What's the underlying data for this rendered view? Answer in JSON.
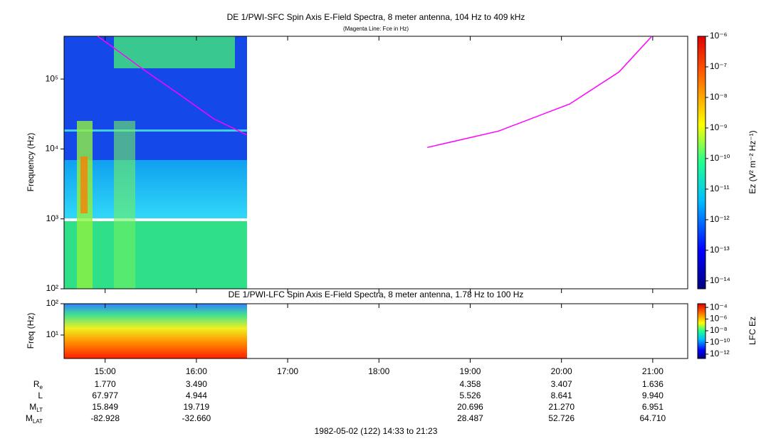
{
  "chart_data": [
    {
      "type": "spectrogram",
      "title": "DE 1/PWI-SFC  Spin Axis E-Field Spectra, 8 meter antenna, 104 Hz to 409 kHz",
      "subtitle": "(Magenta Line: Fce in Hz)",
      "ylabel": "Frequency (Hz)",
      "log_y": true,
      "ylim": [
        100,
        409000
      ],
      "yticks": [
        {
          "value": 100,
          "label": "10²"
        },
        {
          "value": 1000,
          "label": "10³"
        },
        {
          "value": 10000,
          "label": "10⁴"
        },
        {
          "value": 100000,
          "label": "10⁵"
        }
      ],
      "xlim": [
        14.55,
        21.3833
      ],
      "series": [
        {
          "color": "#ff00ff",
          "x": [
            14.92,
            15.41,
            15.8,
            16.19,
            16.55,
            null,
            18.53,
            19.31,
            20.09,
            20.63,
            20.99
          ],
          "values": [
            409000,
            140000,
            62000,
            27000,
            16000,
            null,
            10500,
            18000,
            44000,
            126000,
            409000
          ]
        }
      ],
      "colorbar": {
        "label": "Ez (V² m⁻² Hz⁻¹)",
        "lim": [
          5.5e-15,
          1e-06
        ],
        "ticks": [
          {
            "value": 1e-06,
            "label": "10⁻⁶"
          },
          {
            "value": 1e-07,
            "label": "10⁻⁷"
          },
          {
            "value": 1e-08,
            "label": "10⁻⁸"
          },
          {
            "value": 1e-09,
            "label": "10⁻⁹"
          },
          {
            "value": 1e-10,
            "label": "10⁻¹⁰"
          },
          {
            "value": 1e-11,
            "label": "10⁻¹¹"
          },
          {
            "value": 1e-12,
            "label": "10⁻¹²"
          },
          {
            "value": 1e-13,
            "label": "10⁻¹³"
          },
          {
            "value": 1e-14,
            "label": "10⁻¹⁴"
          }
        ]
      }
    },
    {
      "type": "spectrogram",
      "title": "DE 1/PWI-LFC  Spin Axis E-Field Spectra, 8 meter antenna, 1.78 Hz to 100 Hz",
      "ylabel": "Freq (Hz)",
      "log_y": true,
      "ylim": [
        1.78,
        100
      ],
      "yticks": [
        {
          "value": 10,
          "label": "10¹"
        },
        {
          "value": 100,
          "label": "10²"
        }
      ],
      "xlim": [
        14.55,
        21.3833
      ],
      "xticks": [
        {
          "value": 15,
          "label": "15:00"
        },
        {
          "value": 16,
          "label": "16:00"
        },
        {
          "value": 17,
          "label": "17:00"
        },
        {
          "value": 18,
          "label": "18:00"
        },
        {
          "value": 19,
          "label": "19:00"
        },
        {
          "value": 20,
          "label": "20:00"
        },
        {
          "value": 21,
          "label": "21:00"
        }
      ],
      "colorbar": {
        "label": "LFC Ez",
        "lim": [
          1.8e-13,
          0.00042
        ],
        "ticks": [
          {
            "value": 0.0001,
            "label": "10⁻⁴"
          },
          {
            "value": 1e-06,
            "label": "10⁻⁶"
          },
          {
            "value": 1e-08,
            "label": "10⁻⁸"
          },
          {
            "value": 1e-10,
            "label": "10⁻¹⁰"
          },
          {
            "value": 1e-12,
            "label": "10⁻¹²"
          }
        ]
      }
    }
  ],
  "ephemeris": [
    {
      "label": "R",
      "sub": "e",
      "values": [
        "1.770",
        "3.490",
        null,
        null,
        "4.358",
        "3.407",
        "1.636"
      ]
    },
    {
      "label": "L",
      "values": [
        "67.977",
        "4.944",
        null,
        null,
        "5.526",
        "8.641",
        "9.940"
      ]
    },
    {
      "label": "M",
      "sub": "LT",
      "values": [
        "15.849",
        "19.719",
        null,
        null,
        "20.696",
        "21.270",
        "6.951"
      ]
    },
    {
      "label": "M",
      "sub": "LAT",
      "values": [
        "-82.928",
        "-32.660",
        null,
        null,
        "28.487",
        "52.726",
        "64.710"
      ]
    }
  ],
  "footer": "1982-05-02 (122) 14:33 to 21:23"
}
